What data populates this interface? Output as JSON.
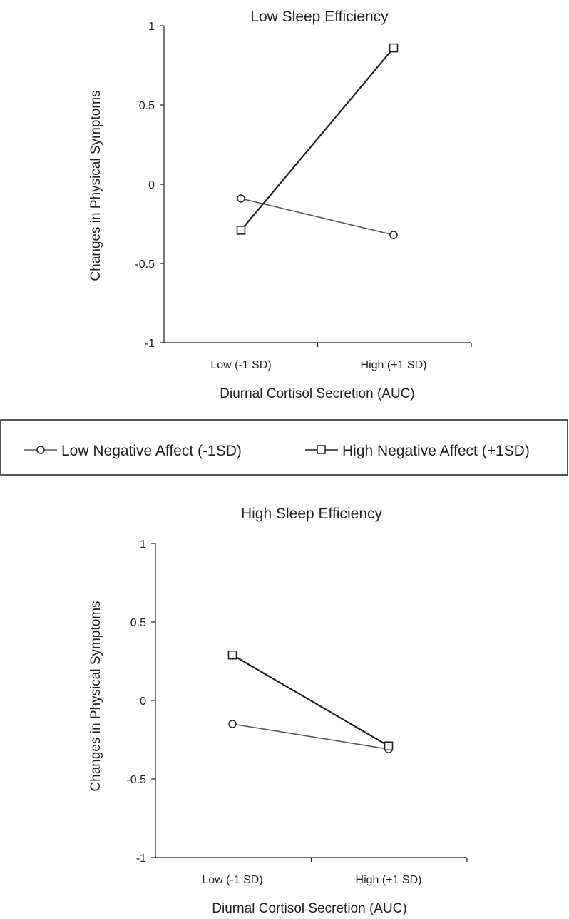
{
  "legend": {
    "entries": [
      {
        "label": "Low Negative Affect (-1SD)",
        "marker": "circle",
        "color": "#58595b"
      },
      {
        "label": "High Negative Affect (+1SD)",
        "marker": "square",
        "color": "#231f20"
      }
    ]
  },
  "chart_data": [
    {
      "type": "line",
      "title": "Low Sleep Efficiency",
      "xlabel": "Diurnal Cortisol Secretion (AUC)",
      "ylabel": "Changes in Physical Symptoms",
      "categories": [
        "Low (-1 SD)",
        "High (+1 SD)"
      ],
      "ylim": [
        -1,
        1
      ],
      "yticks": [
        -1,
        -0.5,
        0,
        0.5,
        1
      ],
      "ytick_labels": [
        "-1",
        "-0.5",
        "0",
        "0.5",
        "1"
      ],
      "grid": false,
      "series": [
        {
          "name": "Low Negative Affect (-1SD)",
          "marker": "circle",
          "values": [
            -0.09,
            -0.32
          ]
        },
        {
          "name": "High Negative Affect (+1SD)",
          "marker": "square",
          "values": [
            -0.29,
            0.86
          ]
        }
      ]
    },
    {
      "type": "line",
      "title": "High Sleep Efficiency",
      "xlabel": "Diurnal Cortisol Secretion (AUC)",
      "ylabel": "Changes in Physical Symptoms",
      "categories": [
        "Low (-1 SD)",
        "High (+1 SD)"
      ],
      "ylim": [
        -1,
        1
      ],
      "yticks": [
        -1,
        -0.5,
        0,
        0.5,
        1
      ],
      "ytick_labels": [
        "-1",
        "-0.5",
        "0",
        "0.5",
        "1"
      ],
      "grid": false,
      "series": [
        {
          "name": "Low Negative Affect (-1SD)",
          "marker": "circle",
          "values": [
            -0.15,
            -0.31
          ]
        },
        {
          "name": "High Negative Affect (+1SD)",
          "marker": "square",
          "values": [
            0.29,
            -0.29
          ]
        }
      ]
    }
  ]
}
